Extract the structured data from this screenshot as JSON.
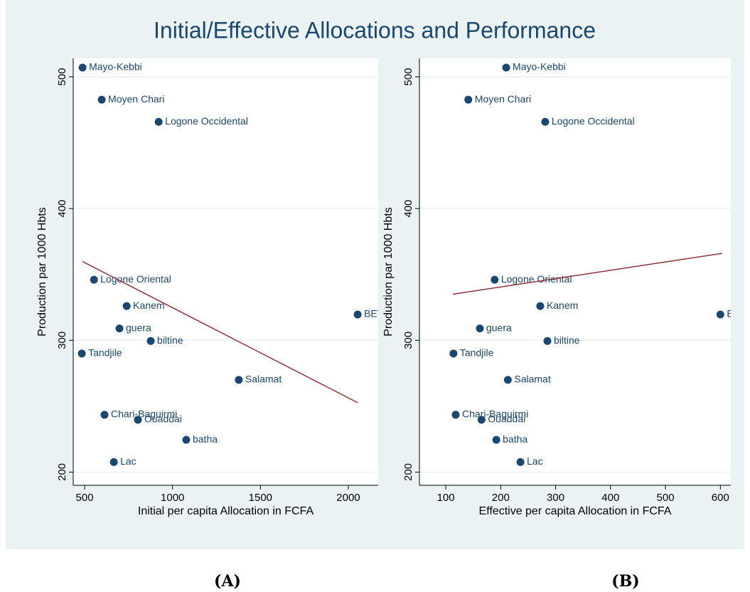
{
  "title": "Initial/Effective Allocations and Performance",
  "chart_data": [
    {
      "type": "scatter",
      "caption": "(A)",
      "x_label": "Initial per capita Allocation in FCFA",
      "y_label": "Production par 1000 Hbts",
      "xlim": [
        435,
        2170
      ],
      "ylim": [
        190,
        514
      ],
      "xticks": [
        500,
        1000,
        1500,
        2000
      ],
      "yticks": [
        200,
        300,
        400,
        500
      ],
      "grid": true,
      "color": "#1a476f",
      "point_labels": [
        "Mayo-Kebbi",
        "Moyen Chari",
        "Logone Occidental",
        "Logone Oriental",
        "Kanem",
        "guera",
        "biltine",
        "BET",
        "Tandjile",
        "Salamat",
        "Chari-Baguirmi",
        "Ouaddai",
        "batha",
        "Lac"
      ],
      "x": [
        488,
        597,
        921,
        553,
        739,
        698,
        876,
        2053,
        484,
        1377,
        613,
        803,
        1078,
        666
      ],
      "values": [
        507,
        482.6,
        465.8,
        346,
        326,
        309,
        299.5,
        319.6,
        290,
        270,
        243.5,
        239.7,
        224.5,
        207.6
      ],
      "fit": {
        "color": "#90353b",
        "x": [
          488,
          2053
        ],
        "values": [
          359.8,
          252.7
        ]
      }
    },
    {
      "type": "scatter",
      "caption": "(B)",
      "x_label": "Effective per capita Allocation in FCFA",
      "y_label": "Production par 1000 Hbts",
      "xlim": [
        52,
        619
      ],
      "ylim": [
        190,
        514
      ],
      "xticks": [
        100,
        200,
        300,
        400,
        500,
        600
      ],
      "yticks": [
        200,
        300,
        400,
        500
      ],
      "grid": true,
      "color": "#1a476f",
      "point_labels": [
        "Mayo-Kebbi",
        "Moyen Chari",
        "Logone Occidental",
        "Logone Oriental",
        "Kanem",
        "guera",
        "biltine",
        "BET",
        "Tandjile",
        "Salamat",
        "Chari-Baguirmi",
        "Ouaddai",
        "batha",
        "Lac"
      ],
      "x": [
        210,
        141,
        281,
        189,
        272,
        162,
        285,
        600,
        114,
        213,
        118,
        165,
        192,
        236
      ],
      "values": [
        507,
        482.6,
        465.8,
        346,
        326,
        309,
        299.5,
        319.6,
        290,
        270,
        243.5,
        239.7,
        224.5,
        207.6
      ],
      "fit": {
        "color": "#90353b",
        "x": [
          113,
          603
        ],
        "values": [
          335,
          366
        ]
      }
    }
  ]
}
